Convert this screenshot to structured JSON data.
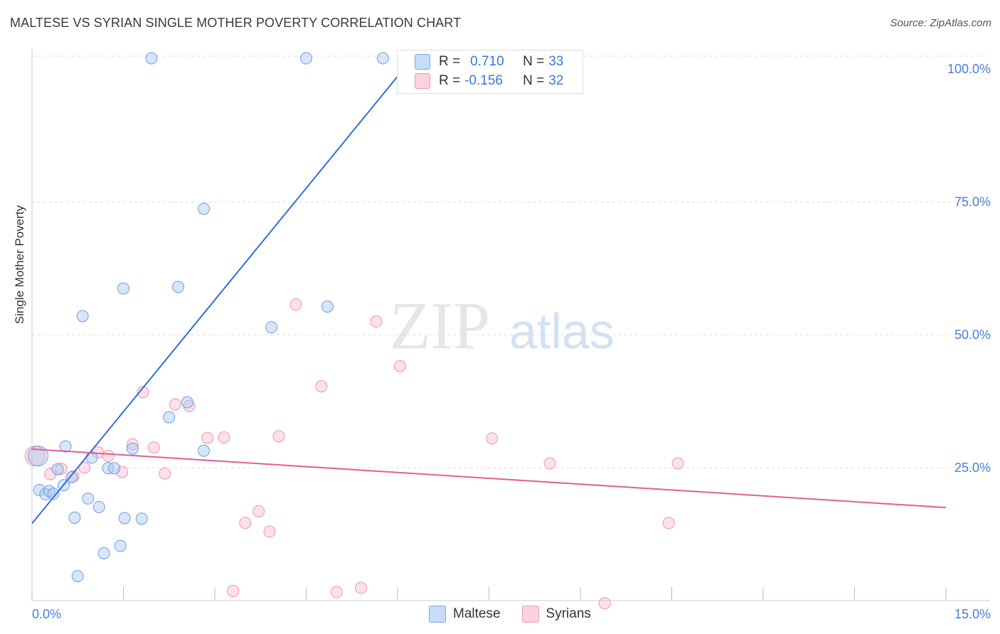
{
  "header": {
    "title": "MALTESE VS SYRIAN SINGLE MOTHER POVERTY CORRELATION CHART",
    "source": "Source: ZipAtlas.com"
  },
  "watermark": {
    "zip": "ZIP",
    "atlas": "atlas"
  },
  "legend": {
    "series": [
      {
        "r_label": "R =",
        "r_value": "0.710",
        "n_label": "N =",
        "n_value": "33",
        "color": "#a9c8f5"
      },
      {
        "r_label": "R =",
        "r_value": "-0.156",
        "n_label": "N =",
        "n_value": "32",
        "color": "#f8bcd0"
      }
    ]
  },
  "bottom_legend": {
    "items": [
      "Maltese",
      "Syrians"
    ]
  },
  "chart_data": {
    "type": "scatter",
    "title": "MALTESE VS SYRIAN SINGLE MOTHER POVERTY CORRELATION CHART",
    "xlabel": "",
    "ylabel": "Single Mother Poverty",
    "xlim": [
      0,
      15
    ],
    "ylim": [
      0,
      100
    ],
    "x_tick_labels": [
      "0.0%",
      "15.0%"
    ],
    "y_tick_labels": [
      "25.0%",
      "50.0%",
      "75.0%",
      "100.0%"
    ],
    "y_ticks": [
      25,
      50,
      75,
      100
    ],
    "colors": {
      "maltese": "#3c78d8",
      "syrians": "#e8739b"
    },
    "series": [
      {
        "name": "Maltese",
        "r": 0.71,
        "n": 33,
        "trendline": {
          "x": [
            0,
            6.1
          ],
          "y": [
            14.5,
            100
          ]
        },
        "points": [
          {
            "x": 0.1,
            "y": 27.2,
            "big": true
          },
          {
            "x": 0.12,
            "y": 20.8
          },
          {
            "x": 0.22,
            "y": 20.0
          },
          {
            "x": 0.28,
            "y": 20.6
          },
          {
            "x": 0.35,
            "y": 20.1
          },
          {
            "x": 0.42,
            "y": 24.7
          },
          {
            "x": 0.52,
            "y": 21.7
          },
          {
            "x": 0.55,
            "y": 29.0
          },
          {
            "x": 0.65,
            "y": 23.2
          },
          {
            "x": 0.7,
            "y": 15.6
          },
          {
            "x": 0.75,
            "y": 4.6
          },
          {
            "x": 0.83,
            "y": 53.5
          },
          {
            "x": 0.92,
            "y": 19.2
          },
          {
            "x": 0.98,
            "y": 26.9
          },
          {
            "x": 1.1,
            "y": 17.6
          },
          {
            "x": 1.18,
            "y": 8.9
          },
          {
            "x": 1.25,
            "y": 24.9
          },
          {
            "x": 1.35,
            "y": 24.9
          },
          {
            "x": 1.45,
            "y": 10.3
          },
          {
            "x": 1.5,
            "y": 58.7
          },
          {
            "x": 1.52,
            "y": 15.5
          },
          {
            "x": 1.65,
            "y": 28.6
          },
          {
            "x": 1.8,
            "y": 15.4
          },
          {
            "x": 1.96,
            "y": 102.0
          },
          {
            "x": 2.25,
            "y": 34.5
          },
          {
            "x": 2.4,
            "y": 59.0
          },
          {
            "x": 2.55,
            "y": 37.3
          },
          {
            "x": 2.82,
            "y": 28.2
          },
          {
            "x": 2.82,
            "y": 73.7
          },
          {
            "x": 3.93,
            "y": 51.4
          },
          {
            "x": 4.5,
            "y": 102.0
          },
          {
            "x": 4.85,
            "y": 55.3
          },
          {
            "x": 5.76,
            "y": 102.0
          }
        ]
      },
      {
        "name": "Syrians",
        "r": -0.156,
        "n": 32,
        "trendline": {
          "x": [
            0,
            15
          ],
          "y": [
            28.5,
            17.5
          ]
        },
        "points": [
          {
            "x": 0.05,
            "y": 27.2,
            "big": true
          },
          {
            "x": 0.3,
            "y": 23.8
          },
          {
            "x": 0.48,
            "y": 24.8
          },
          {
            "x": 0.68,
            "y": 23.4
          },
          {
            "x": 0.86,
            "y": 25.0
          },
          {
            "x": 1.08,
            "y": 27.9
          },
          {
            "x": 1.25,
            "y": 27.2
          },
          {
            "x": 1.48,
            "y": 24.2
          },
          {
            "x": 1.65,
            "y": 29.4
          },
          {
            "x": 1.82,
            "y": 39.2
          },
          {
            "x": 2.0,
            "y": 28.8
          },
          {
            "x": 2.18,
            "y": 23.9
          },
          {
            "x": 2.35,
            "y": 36.9
          },
          {
            "x": 2.58,
            "y": 36.6
          },
          {
            "x": 2.88,
            "y": 30.6
          },
          {
            "x": 3.15,
            "y": 30.7
          },
          {
            "x": 3.3,
            "y": 1.8
          },
          {
            "x": 3.5,
            "y": 14.6
          },
          {
            "x": 3.72,
            "y": 16.8
          },
          {
            "x": 3.9,
            "y": 13.0
          },
          {
            "x": 4.05,
            "y": 30.9
          },
          {
            "x": 4.33,
            "y": 55.7
          },
          {
            "x": 4.75,
            "y": 40.3
          },
          {
            "x": 5.0,
            "y": 1.6
          },
          {
            "x": 5.4,
            "y": 2.4
          },
          {
            "x": 5.65,
            "y": 52.5
          },
          {
            "x": 6.04,
            "y": 44.1
          },
          {
            "x": 7.55,
            "y": 30.5
          },
          {
            "x": 8.5,
            "y": 25.8
          },
          {
            "x": 9.4,
            "y": -0.5
          },
          {
            "x": 10.45,
            "y": 14.6
          },
          {
            "x": 10.6,
            "y": 25.8
          }
        ]
      }
    ]
  }
}
